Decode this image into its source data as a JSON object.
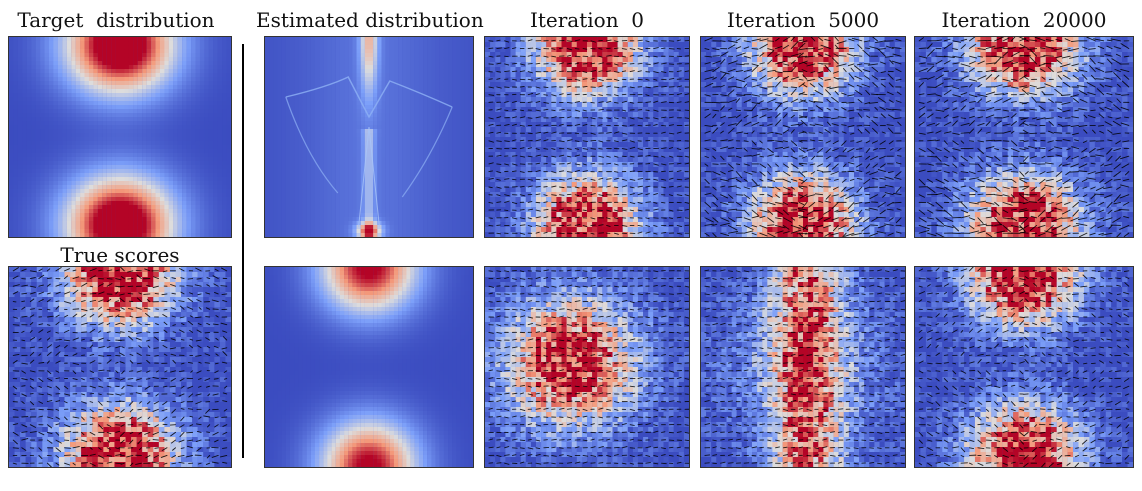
{
  "titles": {
    "target": "Target  distribution",
    "estimated": "Estimated distribution",
    "iter0": "Iteration  0",
    "iter5000": "Iteration  5000",
    "iter20000": "Iteration  20000",
    "true_scores": "True scores"
  },
  "colors": {
    "background_blue": "#3b4cc0",
    "mode_red": "#b40426",
    "pale": "#dddcdc",
    "arrow": "#000000"
  },
  "colormap": "coolwarm"
}
